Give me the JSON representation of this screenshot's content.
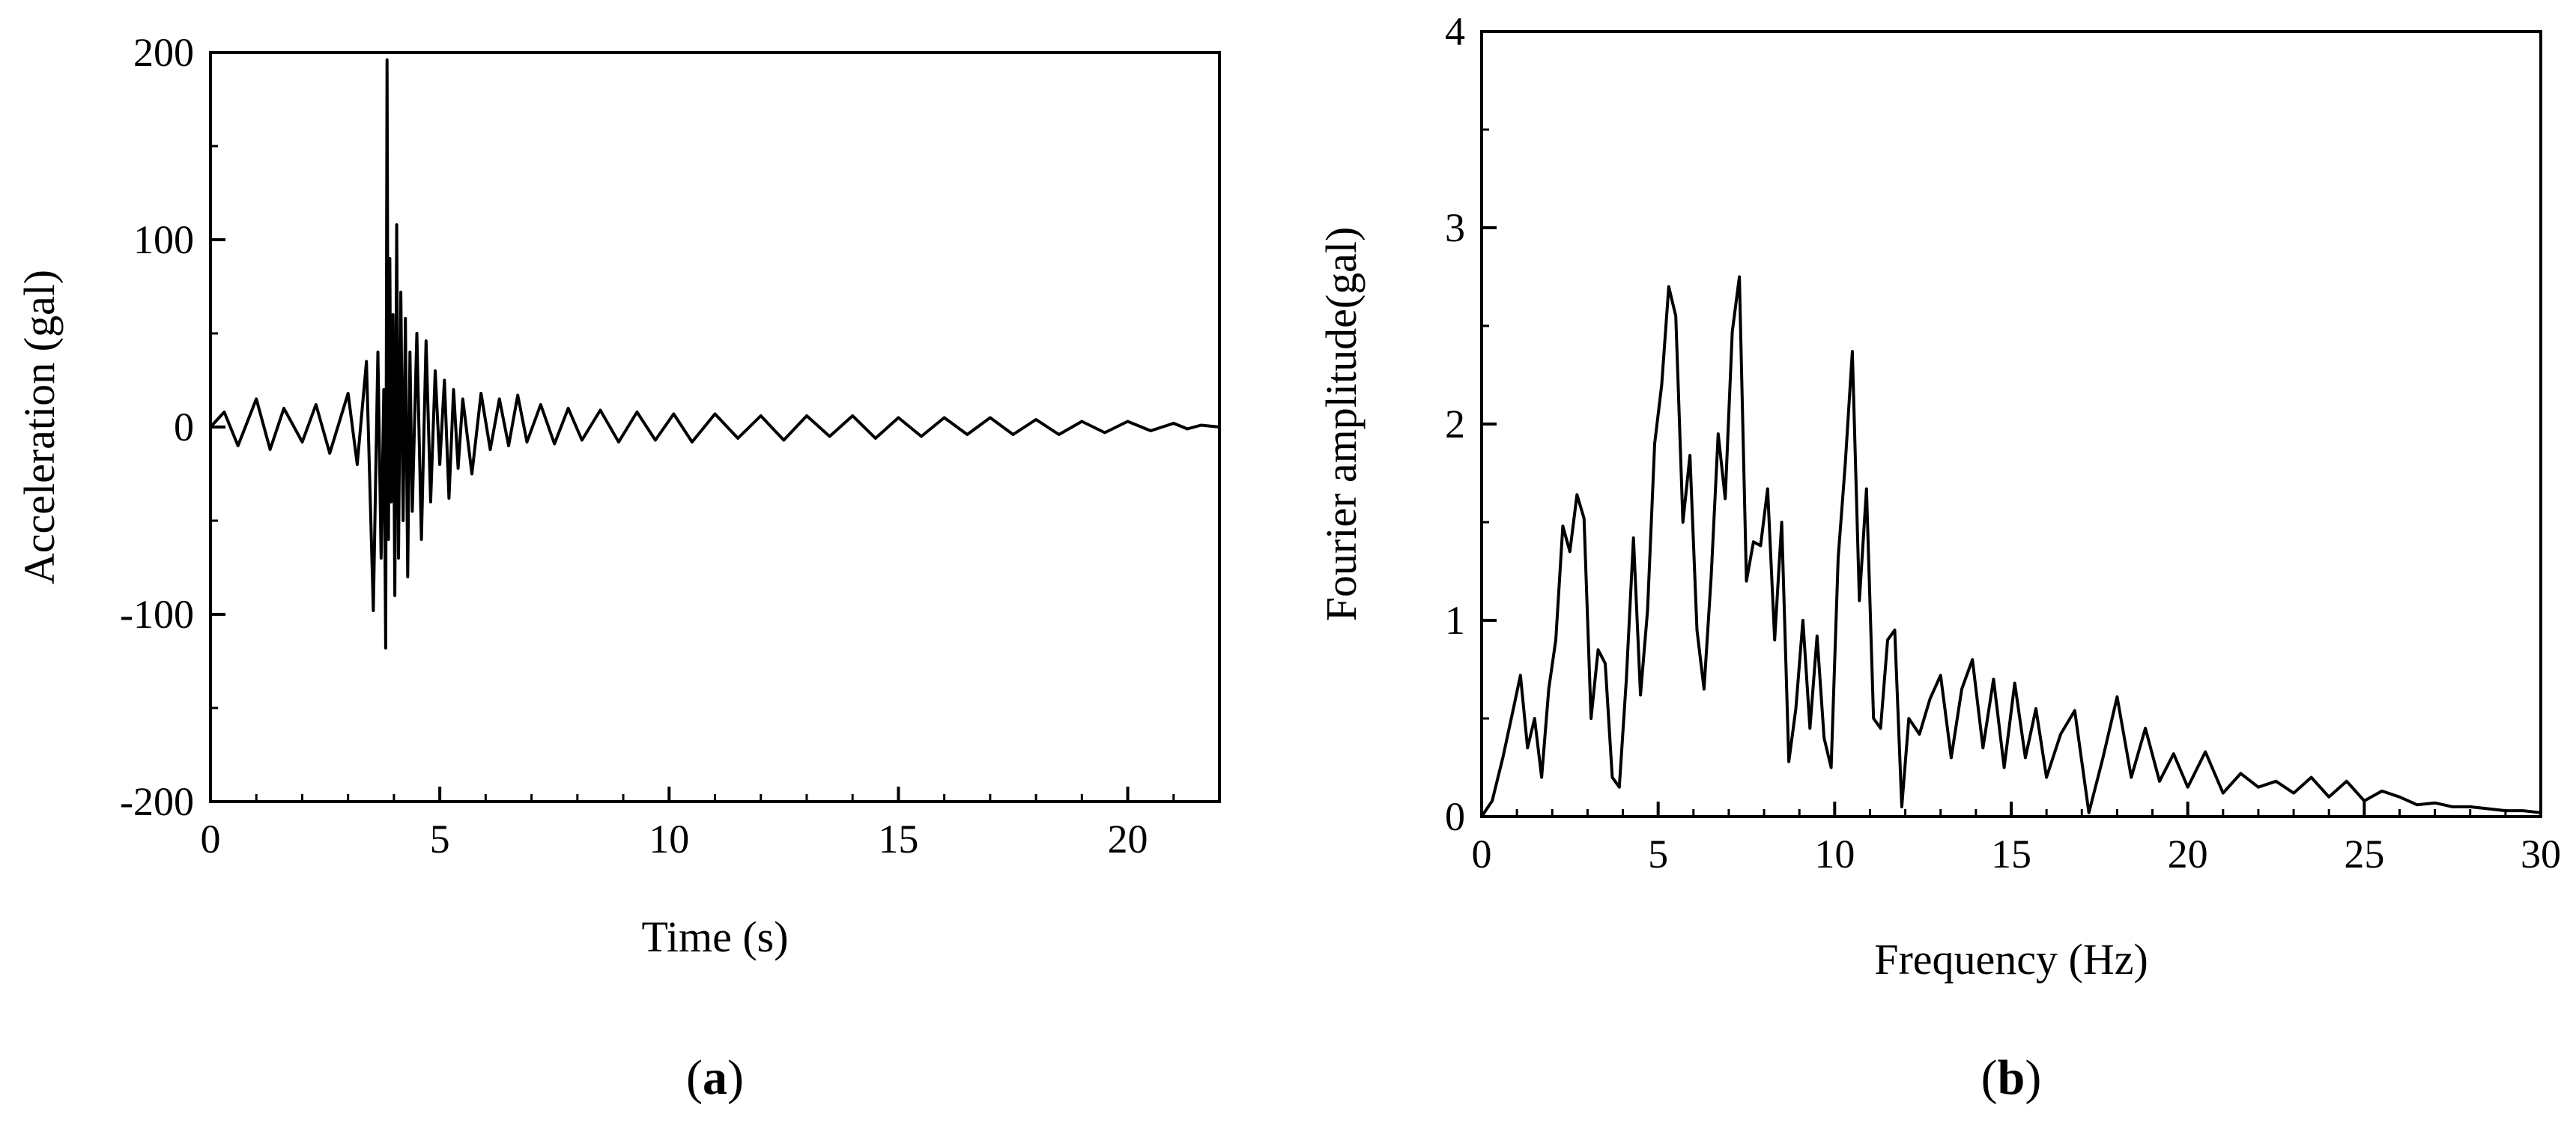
{
  "chart_data": [
    {
      "type": "line",
      "panel_label": "a",
      "xlabel": "Time (s)",
      "ylabel": "Acceleration (gal)",
      "xlim": [
        0,
        22
      ],
      "ylim": [
        -200,
        200
      ],
      "xticks": [
        0,
        5,
        10,
        15,
        20
      ],
      "yticks": [
        -200,
        -100,
        0,
        100,
        200
      ],
      "grid": false,
      "line_color": "#000000",
      "series": [
        {
          "x": [
            0,
            0.3,
            0.6,
            1.0,
            1.3,
            1.6,
            2.0,
            2.3,
            2.6,
            3.0,
            3.2,
            3.4,
            3.55,
            3.65,
            3.72,
            3.78,
            3.82,
            3.85,
            3.88,
            3.91,
            3.94,
            3.98,
            4.02,
            4.06,
            4.1,
            4.15,
            4.2,
            4.25,
            4.3,
            4.35,
            4.4,
            4.5,
            4.6,
            4.7,
            4.8,
            4.9,
            5.0,
            5.1,
            5.2,
            5.3,
            5.4,
            5.5,
            5.7,
            5.9,
            6.1,
            6.3,
            6.5,
            6.7,
            6.9,
            7.2,
            7.5,
            7.8,
            8.1,
            8.5,
            8.9,
            9.3,
            9.7,
            10.1,
            10.5,
            11.0,
            11.5,
            12.0,
            12.5,
            13.0,
            13.5,
            14.0,
            14.5,
            15.0,
            15.5,
            16.0,
            16.5,
            17.0,
            17.5,
            18.0,
            18.5,
            19.0,
            19.5,
            20.0,
            20.5,
            21.0,
            21.3,
            21.6,
            22.0
          ],
          "values": [
            0,
            8,
            -10,
            15,
            -12,
            10,
            -8,
            12,
            -14,
            18,
            -20,
            35,
            -98,
            40,
            -70,
            20,
            -118,
            196,
            -60,
            90,
            -40,
            60,
            -90,
            108,
            -70,
            72,
            -50,
            58,
            -80,
            40,
            -45,
            50,
            -60,
            46,
            -40,
            30,
            -20,
            25,
            -38,
            20,
            -22,
            15,
            -25,
            18,
            -12,
            15,
            -10,
            17,
            -8,
            12,
            -9,
            10,
            -7,
            9,
            -8,
            8,
            -7,
            7,
            -8,
            7,
            -6,
            6,
            -7,
            6,
            -5,
            6,
            -6,
            5,
            -5,
            5,
            -4,
            5,
            -4,
            4,
            -4,
            3,
            -3,
            3,
            -2,
            2,
            -1,
            1,
            0
          ]
        }
      ]
    },
    {
      "type": "line",
      "panel_label": "b",
      "xlabel": "Frequency (Hz)",
      "ylabel": "Fourier amplitude(gal)",
      "xlim": [
        0,
        30
      ],
      "ylim": [
        0,
        4
      ],
      "xticks": [
        0,
        5,
        10,
        15,
        20,
        25,
        30
      ],
      "yticks": [
        0,
        1,
        2,
        3,
        4
      ],
      "grid": false,
      "line_color": "#000000",
      "series": [
        {
          "x": [
            0,
            0.3,
            0.6,
            0.9,
            1.1,
            1.3,
            1.5,
            1.7,
            1.9,
            2.1,
            2.3,
            2.5,
            2.7,
            2.9,
            3.1,
            3.3,
            3.5,
            3.7,
            3.9,
            4.1,
            4.3,
            4.5,
            4.7,
            4.9,
            5.1,
            5.3,
            5.5,
            5.7,
            5.9,
            6.1,
            6.3,
            6.5,
            6.7,
            6.9,
            7.1,
            7.3,
            7.5,
            7.7,
            7.9,
            8.1,
            8.3,
            8.5,
            8.7,
            8.9,
            9.1,
            9.3,
            9.5,
            9.7,
            9.9,
            10.1,
            10.3,
            10.5,
            10.7,
            10.9,
            11.1,
            11.3,
            11.5,
            11.7,
            11.9,
            12.1,
            12.4,
            12.7,
            13.0,
            13.3,
            13.6,
            13.9,
            14.2,
            14.5,
            14.8,
            15.1,
            15.4,
            15.7,
            16.0,
            16.4,
            16.8,
            17.2,
            17.6,
            18.0,
            18.4,
            18.8,
            19.2,
            19.6,
            20.0,
            20.5,
            21.0,
            21.5,
            22.0,
            22.5,
            23.0,
            23.5,
            24.0,
            24.5,
            25.0,
            25.5,
            26.0,
            26.5,
            27.0,
            27.5,
            28.0,
            28.5,
            29.0,
            29.5,
            30.0
          ],
          "values": [
            0,
            0.08,
            0.3,
            0.55,
            0.72,
            0.35,
            0.5,
            0.2,
            0.65,
            0.9,
            1.48,
            1.35,
            1.64,
            1.52,
            0.5,
            0.85,
            0.78,
            0.2,
            0.15,
            0.7,
            1.42,
            0.62,
            1.05,
            1.9,
            2.2,
            2.7,
            2.55,
            1.5,
            1.84,
            0.95,
            0.65,
            1.22,
            1.95,
            1.62,
            2.47,
            2.75,
            1.2,
            1.4,
            1.38,
            1.67,
            0.9,
            1.5,
            0.28,
            0.55,
            1.0,
            0.45,
            0.92,
            0.4,
            0.25,
            1.32,
            1.8,
            2.37,
            1.1,
            1.67,
            0.5,
            0.45,
            0.9,
            0.95,
            0.05,
            0.5,
            0.42,
            0.6,
            0.72,
            0.3,
            0.65,
            0.8,
            0.35,
            0.7,
            0.25,
            0.68,
            0.3,
            0.55,
            0.2,
            0.42,
            0.54,
            0.02,
            0.3,
            0.61,
            0.2,
            0.45,
            0.18,
            0.32,
            0.15,
            0.33,
            0.12,
            0.22,
            0.15,
            0.18,
            0.12,
            0.2,
            0.1,
            0.18,
            0.08,
            0.13,
            0.1,
            0.06,
            0.07,
            0.05,
            0.05,
            0.04,
            0.03,
            0.03,
            0.02
          ]
        }
      ]
    }
  ]
}
